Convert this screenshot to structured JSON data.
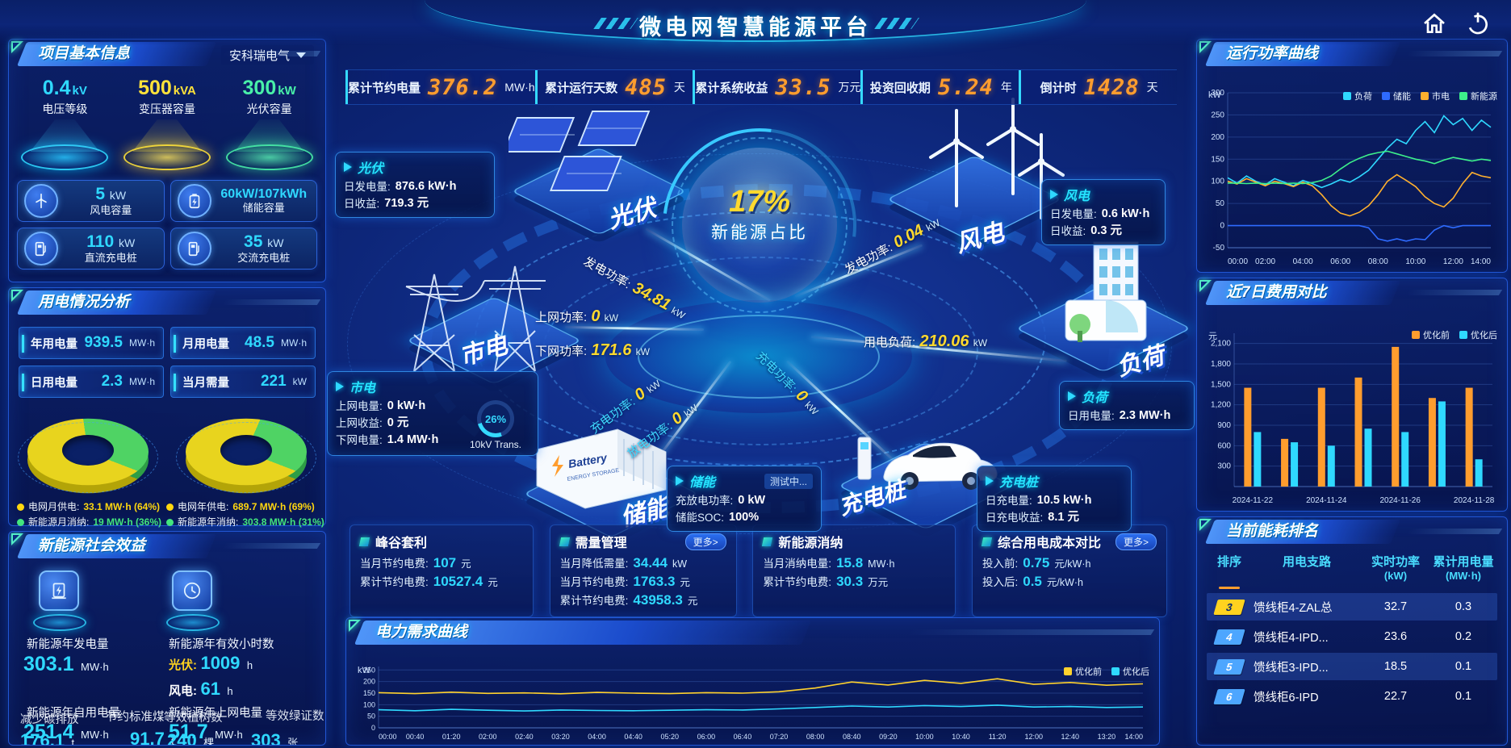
{
  "app": {
    "title": "微电网智慧能源平台"
  },
  "top_stats": [
    {
      "label": "累计节约电量",
      "value": "376.2",
      "unit": "MW·h"
    },
    {
      "label": "累计运行天数",
      "value": "485",
      "unit": "天"
    },
    {
      "label": "累计系统收益",
      "value": "33.5",
      "unit": "万元"
    },
    {
      "label": "投资回收期",
      "value": "5.24",
      "unit": "年"
    },
    {
      "label": "倒计时",
      "value": "1428",
      "unit": "天"
    }
  ],
  "project": {
    "title": "项目基本信息",
    "company": "安科瑞电气",
    "pedestals": [
      {
        "value": "0.4",
        "unit": "kV",
        "label": "电压等级"
      },
      {
        "value": "500",
        "unit": "kVA",
        "label": "变压器容量"
      },
      {
        "value": "300",
        "unit": "kW",
        "label": "光伏容量"
      }
    ],
    "cards": [
      {
        "value": "5",
        "unit": "kW",
        "label": "风电容量",
        "icon": "wind-turbine-icon"
      },
      {
        "value": "60kW/107kWh",
        "unit": "",
        "label": "储能容量",
        "icon": "battery-icon"
      },
      {
        "value": "110",
        "unit": "kW",
        "label": "直流充电桩",
        "icon": "charger-icon"
      },
      {
        "value": "35",
        "unit": "kW",
        "label": "交流充电桩",
        "icon": "charger-icon"
      }
    ]
  },
  "usage": {
    "title": "用电情况分析",
    "stats": [
      {
        "label": "年用电量",
        "value": "939.5",
        "unit": "MW·h"
      },
      {
        "label": "月用电量",
        "value": "48.5",
        "unit": "MW·h"
      },
      {
        "label": "日用电量",
        "value": "2.3",
        "unit": "MW·h"
      },
      {
        "label": "当月需量",
        "value": "221",
        "unit": "kW"
      }
    ],
    "donuts": [
      {
        "legend": [
          {
            "label": "电网月供电",
            "value": "33.1 MW·h (64%)",
            "pct": 64,
            "color": "#ffd70f"
          },
          {
            "label": "新能源月消纳",
            "value": "19 MW·h (36%)",
            "pct": 36,
            "color": "#45e87c"
          }
        ]
      },
      {
        "legend": [
          {
            "label": "电网年供电",
            "value": "689.7 MW·h (69%)",
            "pct": 69,
            "color": "#ffd70f"
          },
          {
            "label": "新能源年消纳",
            "value": "303.8 MW·h (31%)",
            "pct": 31,
            "color": "#45e87c"
          }
        ]
      }
    ]
  },
  "benefits": {
    "title": "新能源社会效益",
    "annual_generation": {
      "label": "新能源年发电量",
      "value": "303.1",
      "unit": "MW·h"
    },
    "annual_hours_label": "新能源年有效小时数",
    "pv_hours": {
      "k": "光伏:",
      "v": "1009",
      "u": "h"
    },
    "wind_hours": {
      "k": "风电:",
      "v": "61",
      "u": "h"
    },
    "self_use": {
      "label": "新能源年自用电量",
      "value": "251.4",
      "unit": "MW·h"
    },
    "co2": {
      "label": "减少碳排放",
      "value": "176.1",
      "unit": "t"
    },
    "coal": {
      "label": "节约标准煤",
      "value": "91.7",
      "unit": "t"
    },
    "to_grid": {
      "label": "新能源年上网电量",
      "value": "51.7",
      "unit": "MW·h"
    },
    "trees": {
      "label": "等效植树数",
      "value": "240",
      "unit": "棵"
    },
    "certs": {
      "label": "等效绿证数",
      "value": "303",
      "unit": "张"
    }
  },
  "diagram": {
    "center": {
      "value": "17%",
      "label": "新能源占比"
    },
    "nodes": {
      "pv": "光伏",
      "grid": "市电",
      "wind": "风电",
      "load": "负荷",
      "storage": "储能",
      "charger": "充电桩"
    },
    "boxes": {
      "pv": {
        "title": "光伏",
        "rows": [
          [
            "日发电量:",
            "876.6 kW·h"
          ],
          [
            "日收益:",
            "719.3 元"
          ]
        ]
      },
      "wind": {
        "title": "风电",
        "rows": [
          [
            "日发电量:",
            "0.6 kW·h"
          ],
          [
            "日收益:",
            "0.3 元"
          ]
        ]
      },
      "grid": {
        "title": "市电",
        "rows": [
          [
            "上网电量:",
            "0 kW·h"
          ],
          [
            "上网收益:",
            "0 元"
          ],
          [
            "下网电量:",
            "1.4 MW·h"
          ]
        ],
        "gauge_value": "26%",
        "gauge_label": "10kV Trans."
      },
      "load": {
        "title": "负荷",
        "rows": [
          [
            "日用电量:",
            "2.3 MW·h"
          ]
        ]
      },
      "storage": {
        "title": "储能",
        "tag": "测试中...",
        "rows": [
          [
            "充放电功率:",
            "0 kW"
          ],
          [
            "储能SOC:",
            "100%"
          ]
        ]
      },
      "charger": {
        "title": "充电桩",
        "rows": [
          [
            "日充电量:",
            "10.5 kW·h"
          ],
          [
            "日充电收益:",
            "8.1 元"
          ]
        ]
      }
    },
    "flows": {
      "pv_gen": {
        "label": "发电功率:",
        "value": "34.81",
        "unit": "kW"
      },
      "grid_up": {
        "label": "上网功率:",
        "value": "0",
        "unit": "kW"
      },
      "grid_down": {
        "label": "下网功率:",
        "value": "171.6",
        "unit": "kW"
      },
      "wind_gen": {
        "label": "发电功率:",
        "value": "0.04",
        "unit": "kW"
      },
      "load_power": {
        "label": "用电负荷:",
        "value": "210.06",
        "unit": "kW"
      },
      "sto_charge": {
        "label": "充电功率:",
        "value": "0",
        "unit": "kW"
      },
      "sto_discharge": {
        "label": "放电功率:",
        "value": "0",
        "unit": "kW"
      },
      "chg_charge": {
        "label": "充电功率:",
        "value": "0",
        "unit": "kW"
      }
    }
  },
  "bottom_cards": [
    {
      "title": "峰谷套利",
      "more": "",
      "rows": [
        [
          "当月节约电费:",
          "107",
          "元"
        ],
        [
          "累计节约电费:",
          "10527.4",
          "元"
        ]
      ]
    },
    {
      "title": "需量管理",
      "more": "更多>",
      "rows": [
        [
          "当月降低需量:",
          "34.44",
          "kW"
        ],
        [
          "当月节约电费:",
          "1763.3",
          "元"
        ],
        [
          "累计节约电费:",
          "43958.3",
          "元"
        ]
      ]
    },
    {
      "title": "新能源消纳",
      "more": "",
      "rows": [
        [
          "当月消纳电量:",
          "15.8",
          "MW·h"
        ],
        [
          "累计节约电费:",
          "30.3",
          "万元"
        ]
      ]
    },
    {
      "title": "综合用电成本对比",
      "more": "更多>",
      "rows": [
        [
          "投入前:",
          "0.75",
          "元/kW·h"
        ],
        [
          "投入后:",
          "0.5",
          "元/kW·h"
        ]
      ]
    }
  ],
  "demand_panel": {
    "title": "电力需求曲线"
  },
  "right": {
    "power_panel": {
      "title": "运行功率曲线"
    },
    "cost_panel": {
      "title": "近7日费用对比"
    },
    "ranking": {
      "title": "当前能耗排名",
      "columns": [
        {
          "t": "排序",
          "s": ""
        },
        {
          "t": "用电支路",
          "s": ""
        },
        {
          "t": "实时功率",
          "s": "(kW)"
        },
        {
          "t": "累计用电量",
          "s": "(MW·h)"
        }
      ],
      "rows": [
        {
          "rank": "3",
          "branch": "馈线柜4-ZAL总",
          "power": "32.7",
          "energy": "0.3",
          "badge": "#ffd21f",
          "highlight": true
        },
        {
          "rank": "4",
          "branch": "馈线柜4-IPD...",
          "power": "23.6",
          "energy": "0.2",
          "badge": "#4da6ff",
          "highlight": false
        },
        {
          "rank": "5",
          "branch": "馈线柜3-IPD...",
          "power": "18.5",
          "energy": "0.1",
          "badge": "#4da6ff",
          "highlight": true
        },
        {
          "rank": "6",
          "branch": "馈线柜6-IPD",
          "power": "22.7",
          "energy": "0.1",
          "badge": "#4da6ff",
          "highlight": false
        }
      ]
    }
  },
  "chart_data": [
    {
      "id": "run_power",
      "type": "line",
      "title": "运行功率曲线",
      "ylabel": "kW",
      "ylim": [
        -50,
        300
      ],
      "yticks": [
        300,
        250,
        200,
        150,
        100,
        50,
        0,
        -50
      ],
      "x_ticks": [
        "00:00",
        "02:00",
        "04:00",
        "06:00",
        "08:00",
        "10:00",
        "12:00",
        "14:00"
      ],
      "legend_position": "top-right",
      "grid": true,
      "series": [
        {
          "name": "负荷",
          "color": "#2fd9ff",
          "values": [
            108,
            96,
            112,
            100,
            92,
            106,
            98,
            90,
            102,
            95,
            86,
            94,
            104,
            98,
            110,
            125,
            150,
            175,
            195,
            185,
            215,
            235,
            210,
            248,
            228,
            242,
            215,
            238,
            222
          ]
        },
        {
          "name": "储能",
          "color": "#2e6bff",
          "values": [
            0,
            0,
            0,
            0,
            0,
            0,
            0,
            0,
            0,
            0,
            0,
            0,
            0,
            0,
            0,
            -5,
            -30,
            -35,
            -30,
            -35,
            -30,
            -32,
            -10,
            0,
            -5,
            0,
            0,
            0,
            0
          ]
        },
        {
          "name": "市电",
          "color": "#ffb02e",
          "values": [
            100,
            94,
            106,
            98,
            90,
            100,
            95,
            88,
            98,
            90,
            70,
            45,
            28,
            22,
            30,
            45,
            70,
            100,
            115,
            102,
            88,
            65,
            50,
            42,
            62,
            95,
            120,
            112,
            108
          ]
        },
        {
          "name": "新能源",
          "color": "#3df08b",
          "values": [
            96,
            96,
            95,
            96,
            95,
            96,
            95,
            96,
            95,
            97,
            102,
            112,
            128,
            142,
            152,
            160,
            165,
            168,
            162,
            156,
            150,
            146,
            140,
            148,
            154,
            150,
            146,
            150,
            147
          ]
        }
      ]
    },
    {
      "id": "cost_7day",
      "type": "bar",
      "title": "近7日费用对比",
      "ylabel": "元",
      "ylim": [
        0,
        2250
      ],
      "yticks": [
        2100,
        1800,
        1500,
        1200,
        900,
        600,
        300
      ],
      "ytick_labels": [
        "2,100",
        "1,800",
        "1,500",
        "1,200",
        "900",
        "600",
        "300"
      ],
      "categories": [
        "2024-11-22",
        "2024-11-23",
        "2024-11-24",
        "2024-11-25",
        "2024-11-26",
        "2024-11-27",
        "2024-11-28"
      ],
      "x_tick_labels": [
        "2024-11-22",
        "2024-11-24",
        "2024-11-26",
        "2024-11-28"
      ],
      "legend_position": "top-right",
      "grid": true,
      "series": [
        {
          "name": "优化前",
          "color": "#ff9d2e",
          "values": [
            1450,
            700,
            1450,
            1600,
            2050,
            1300,
            1450
          ]
        },
        {
          "name": "优化后",
          "color": "#2fd9ff",
          "values": [
            800,
            650,
            600,
            850,
            800,
            1250,
            400
          ]
        }
      ]
    },
    {
      "id": "demand_curve",
      "type": "line",
      "title": "电力需求曲线",
      "ylabel": "kW",
      "ylim": [
        0,
        265
      ],
      "yticks": [
        250,
        200,
        150,
        100,
        50,
        0
      ],
      "x_ticks": [
        "00:00",
        "00:40",
        "01:20",
        "02:00",
        "02:40",
        "03:20",
        "04:00",
        "04:40",
        "05:20",
        "06:00",
        "06:40",
        "07:20",
        "08:00",
        "08:40",
        "09:20",
        "10:00",
        "10:40",
        "11:20",
        "12:00",
        "12:40",
        "13:20",
        "14:00"
      ],
      "legend_position": "top-right",
      "grid": true,
      "series": [
        {
          "name": "优化前",
          "color": "#ffd22e",
          "values": [
            152,
            148,
            154,
            149,
            151,
            147,
            153,
            150,
            148,
            152,
            150,
            156,
            172,
            198,
            185,
            205,
            192,
            212,
            188,
            196,
            184,
            190
          ]
        },
        {
          "name": "优化后",
          "color": "#2fd9ff",
          "values": [
            78,
            74,
            80,
            76,
            73,
            77,
            75,
            74,
            76,
            78,
            77,
            82,
            88,
            94,
            90,
            96,
            92,
            98,
            90,
            92,
            88,
            90
          ]
        }
      ]
    }
  ]
}
